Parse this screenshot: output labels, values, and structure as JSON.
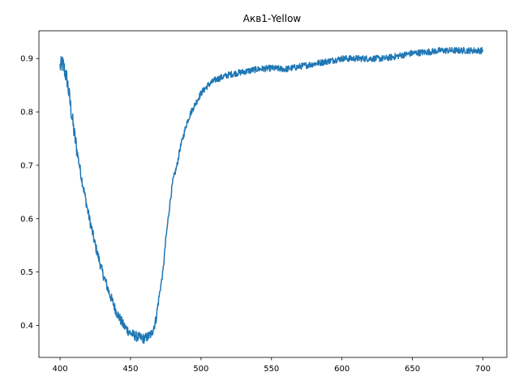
{
  "chart_data": {
    "type": "line",
    "title": "Акв1-Yellow",
    "xlabel": "",
    "ylabel": "",
    "xlim": [
      385,
      717
    ],
    "ylim": [
      0.34,
      0.952
    ],
    "xticks": [
      400,
      450,
      500,
      550,
      600,
      650,
      700
    ],
    "yticks": [
      0.4,
      0.5,
      0.6,
      0.7,
      0.8,
      0.9
    ],
    "ytick_labels": [
      "0.4",
      "0.5",
      "0.6",
      "0.7",
      "0.8",
      "0.9"
    ],
    "grid": false,
    "legend": "none",
    "color": "#1f77b4",
    "noise_amplitude": 0.006,
    "series": [
      {
        "x": [
          400,
          402,
          405,
          408,
          410,
          415,
          420,
          425,
          430,
          435,
          440,
          445,
          450,
          455,
          460,
          463,
          465,
          468,
          470,
          473,
          475,
          478,
          480,
          483,
          485,
          488,
          490,
          493,
          495,
          500,
          505,
          510,
          515,
          520,
          530,
          540,
          550,
          560,
          570,
          580,
          590,
          600,
          610,
          620,
          630,
          640,
          650,
          660,
          670,
          680,
          690,
          700
        ],
        "y": [
          0.885,
          0.89,
          0.86,
          0.8,
          0.76,
          0.68,
          0.61,
          0.55,
          0.5,
          0.46,
          0.425,
          0.4,
          0.385,
          0.378,
          0.375,
          0.38,
          0.385,
          0.41,
          0.45,
          0.5,
          0.56,
          0.63,
          0.67,
          0.7,
          0.73,
          0.76,
          0.78,
          0.8,
          0.81,
          0.835,
          0.85,
          0.86,
          0.865,
          0.87,
          0.875,
          0.88,
          0.882,
          0.88,
          0.885,
          0.89,
          0.895,
          0.9,
          0.9,
          0.9,
          0.9,
          0.905,
          0.91,
          0.912,
          0.915,
          0.915,
          0.915,
          0.915
        ]
      }
    ]
  }
}
